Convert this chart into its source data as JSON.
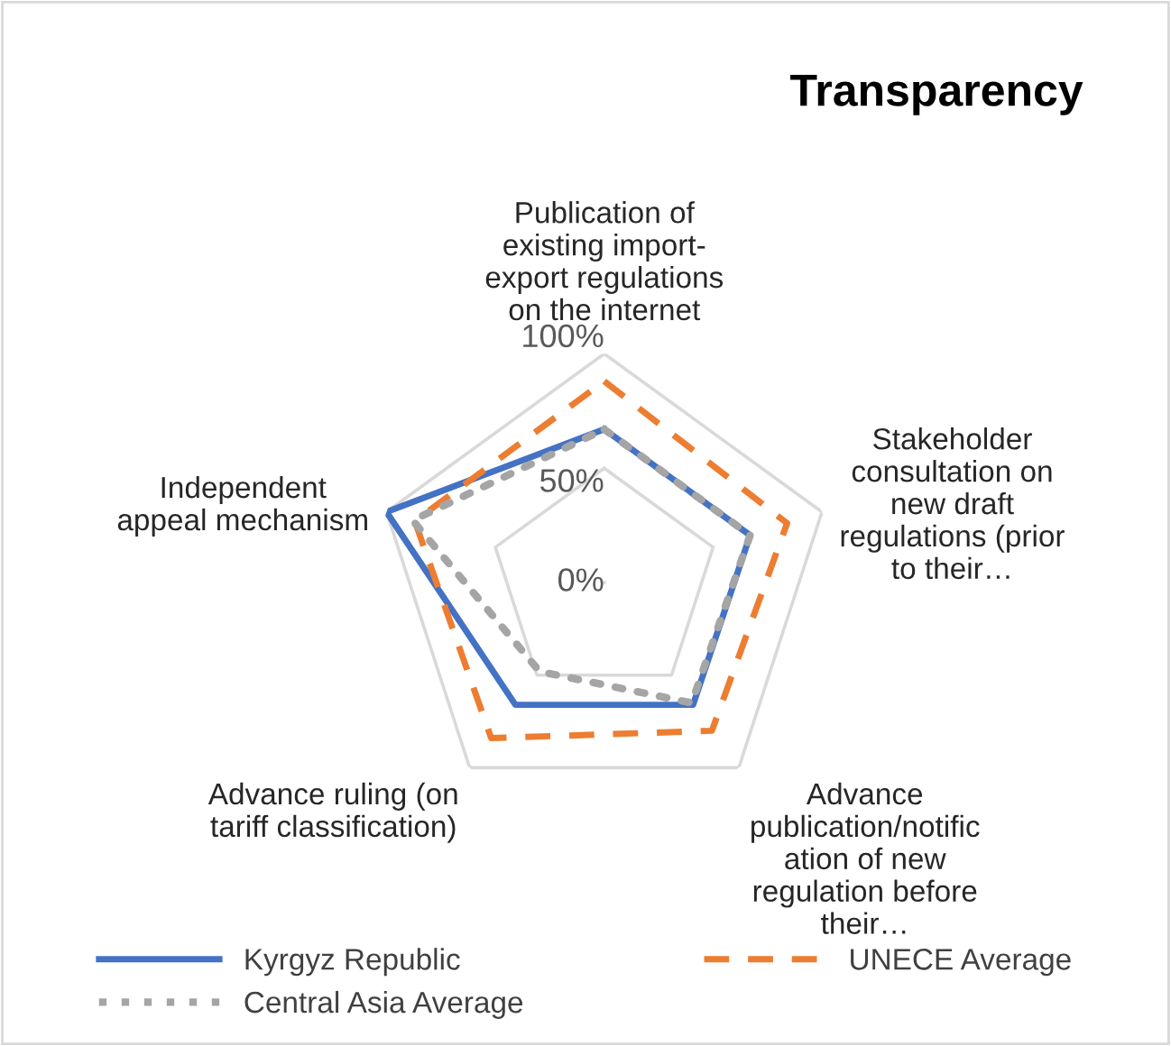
{
  "chart_data": {
    "type": "radar",
    "title": "Transparency",
    "categories": [
      "Publication of\nexisting import-\nexport regulations\non the internet",
      "Stakeholder\nconsultation on\nnew draft\nregulations (prior\nto their…",
      "Advance\npublication/notific\nation of new\nregulation before\ntheir…",
      "Advance ruling (on\ntariff classification)",
      "Independent\nappeal mechanism"
    ],
    "series": [
      {
        "name": "Kyrgyz Republic",
        "color": "#4472c4",
        "line_style": "solid",
        "values": [
          67,
          67,
          66,
          66,
          100
        ]
      },
      {
        "name": "UNECE Average",
        "color": "#ed7d31",
        "line_style": "dashed",
        "values": [
          88,
          84,
          80,
          84,
          87
        ]
      },
      {
        "name": "Central Asia Average",
        "color": "#a5a5a5",
        "line_style": "dotted",
        "values": [
          67,
          67,
          65,
          48,
          88
        ]
      }
    ],
    "ylim": [
      0,
      100
    ],
    "yticks": [
      {
        "value": 0,
        "label": "0%"
      },
      {
        "value": 50,
        "label": "50%"
      },
      {
        "value": 100,
        "label": "100%"
      }
    ],
    "grid": true,
    "legend": "bottom",
    "marker": "none"
  }
}
